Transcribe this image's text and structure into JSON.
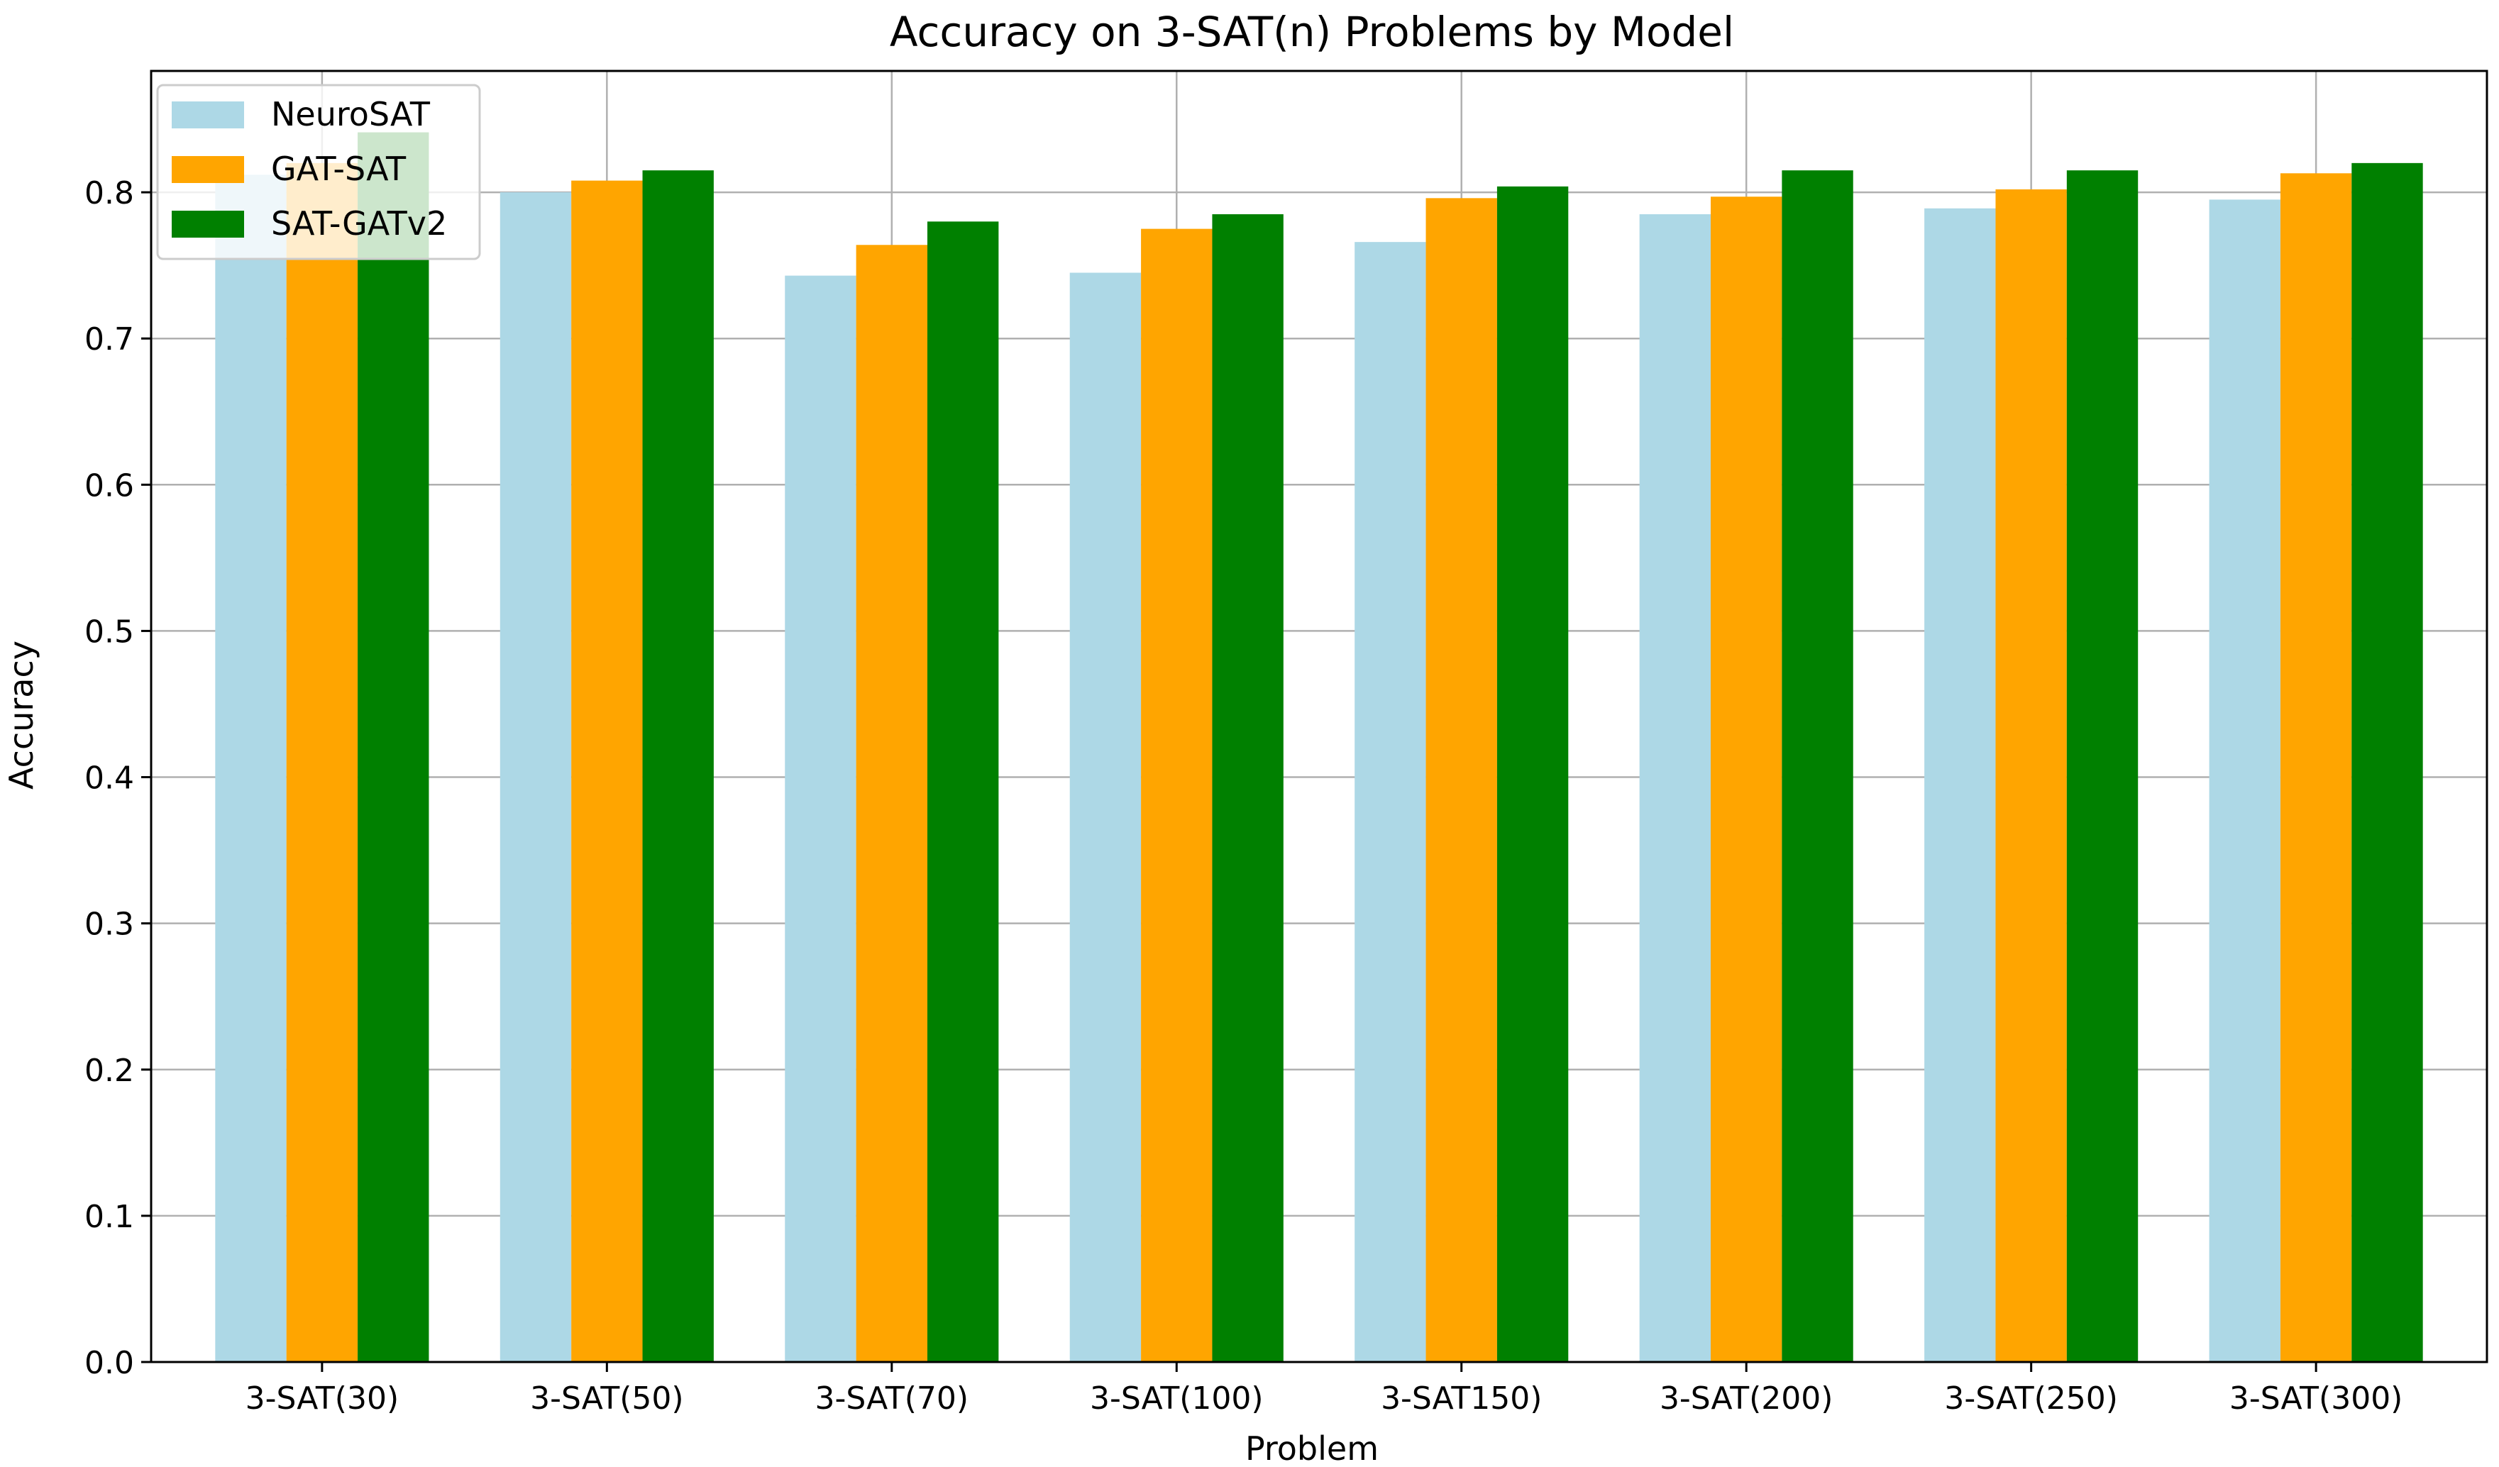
{
  "chart_data": {
    "type": "bar",
    "title": "Accuracy on 3-SAT(n) Problems by Model",
    "xlabel": "Problem",
    "ylabel": "Accuracy",
    "categories": [
      "3-SAT(30)",
      "3-SAT(50)",
      "3-SAT(70)",
      "3-SAT(100)",
      "3-SAT150)",
      "3-SAT(200)",
      "3-SAT(250)",
      "3-SAT(300)"
    ],
    "series": [
      {
        "name": "NeuroSAT",
        "color": "#add8e6",
        "values": [
          0.812,
          0.8,
          0.743,
          0.745,
          0.766,
          0.785,
          0.789,
          0.795
        ]
      },
      {
        "name": "GAT-SAT",
        "color": "#ffa500",
        "values": [
          0.82,
          0.808,
          0.764,
          0.775,
          0.796,
          0.797,
          0.802,
          0.813
        ]
      },
      {
        "name": "SAT-GATv2",
        "color": "#008000",
        "values": [
          0.841,
          0.815,
          0.78,
          0.785,
          0.804,
          0.815,
          0.815,
          0.82
        ]
      }
    ],
    "ylim": [
      0,
      0.883
    ],
    "yticks": [
      "0.0",
      "0.1",
      "0.2",
      "0.3",
      "0.4",
      "0.5",
      "0.6",
      "0.7",
      "0.8"
    ],
    "grid": true,
    "legend_position": "top-left"
  }
}
